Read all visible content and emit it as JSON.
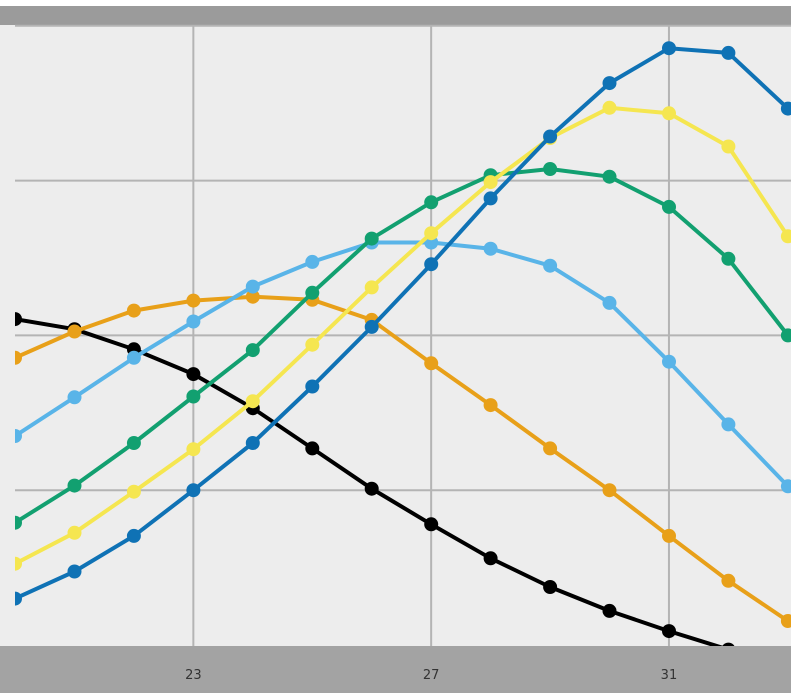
{
  "chart_data": {
    "type": "line",
    "title": "",
    "xlabel": "",
    "ylabel": "",
    "xlim": [
      20,
      33.05
    ],
    "ylim": [
      0,
      100
    ],
    "x_ticks": [
      23,
      27,
      31
    ],
    "x_tick_labels": [
      "23",
      "27",
      "31"
    ],
    "y_gridlines": [
      20,
      40,
      60,
      80
    ],
    "grid": true,
    "legend": "none",
    "colors": {
      "plot_background": "#ededed",
      "grid": "#b4b4b4",
      "top_band": "#9b9b9b",
      "axis_band": "#a3a3a3",
      "series": [
        "#000000",
        "#e8a019",
        "#59b4e8",
        "#12a070",
        "#f5e650",
        "#0f72b5"
      ]
    },
    "x": [
      20,
      21,
      22,
      23,
      24,
      25,
      26,
      27,
      28,
      29,
      30,
      31,
      32,
      33
    ],
    "series": [
      {
        "color": "#000000",
        "values": [
          42.1,
          40.8,
          38.2,
          35.0,
          30.6,
          25.4,
          20.2,
          15.6,
          11.2,
          7.5,
          4.4,
          1.8,
          -0.6,
          -2.6
        ]
      },
      {
        "color": "#e8a019",
        "values": [
          37.1,
          40.5,
          43.2,
          44.5,
          45.0,
          44.6,
          42.0,
          36.4,
          31.0,
          25.4,
          20.0,
          14.1,
          8.3,
          3.1
        ]
      },
      {
        "color": "#59b4e8",
        "values": [
          27.0,
          32.0,
          37.1,
          41.8,
          46.3,
          49.5,
          52.0,
          52.0,
          51.2,
          49.0,
          44.2,
          36.6,
          28.5,
          20.5
        ]
      },
      {
        "color": "#12a070",
        "values": [
          15.8,
          20.6,
          26.1,
          32.1,
          38.1,
          45.5,
          52.5,
          57.2,
          60.7,
          61.5,
          60.5,
          56.6,
          49.9,
          40.0
        ]
      },
      {
        "color": "#f5e650",
        "values": [
          10.5,
          14.5,
          19.8,
          25.3,
          31.5,
          38.8,
          46.2,
          53.2,
          59.8,
          65.5,
          69.4,
          68.7,
          64.4,
          52.8
        ]
      },
      {
        "color": "#0f72b5",
        "values": [
          6.0,
          9.5,
          14.1,
          20.0,
          26.1,
          33.4,
          41.1,
          49.2,
          57.7,
          65.7,
          72.6,
          77.1,
          76.5,
          69.3
        ]
      }
    ]
  }
}
